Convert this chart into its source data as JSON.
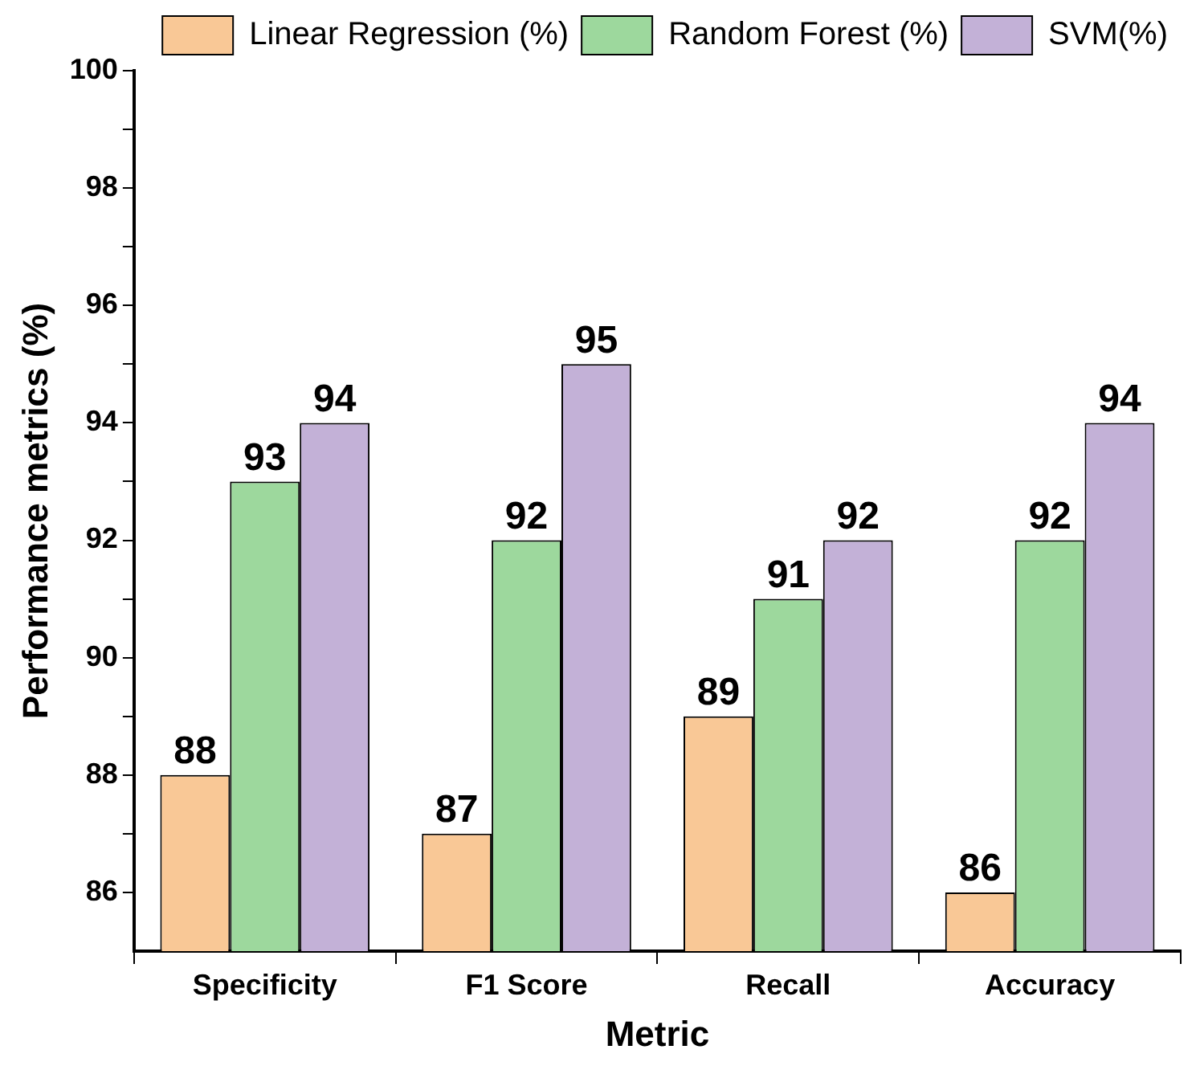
{
  "chart_data": {
    "type": "bar",
    "xlabel": "Metric",
    "ylabel": "Performance metrics (%)",
    "categories": [
      "Specificity",
      "F1 Score",
      "Recall",
      "Accuracy"
    ],
    "series": [
      {
        "name": "Linear Regression (%)",
        "color": "#f9c896",
        "values": [
          88,
          87,
          89,
          86
        ]
      },
      {
        "name": "Random Forest (%)",
        "color": "#9dd89d",
        "values": [
          93,
          92,
          91,
          92
        ]
      },
      {
        "name": "SVM(%)",
        "color": "#c3b1d7",
        "values": [
          94,
          95,
          92,
          94
        ]
      }
    ],
    "ylim": [
      85,
      100
    ],
    "yticks": [
      86,
      {
        "value": 87,
        "label": null
      },
      88,
      {
        "value": 89,
        "label": null
      },
      90,
      {
        "value": 91,
        "label": null
      },
      92,
      {
        "value": 93,
        "label": null
      },
      94,
      {
        "value": 95,
        "label": null
      },
      96,
      {
        "value": 97,
        "label": null
      },
      98,
      {
        "value": 99,
        "label": null
      },
      100
    ],
    "grid": false,
    "legend": "top right",
    "data_labels": true
  }
}
